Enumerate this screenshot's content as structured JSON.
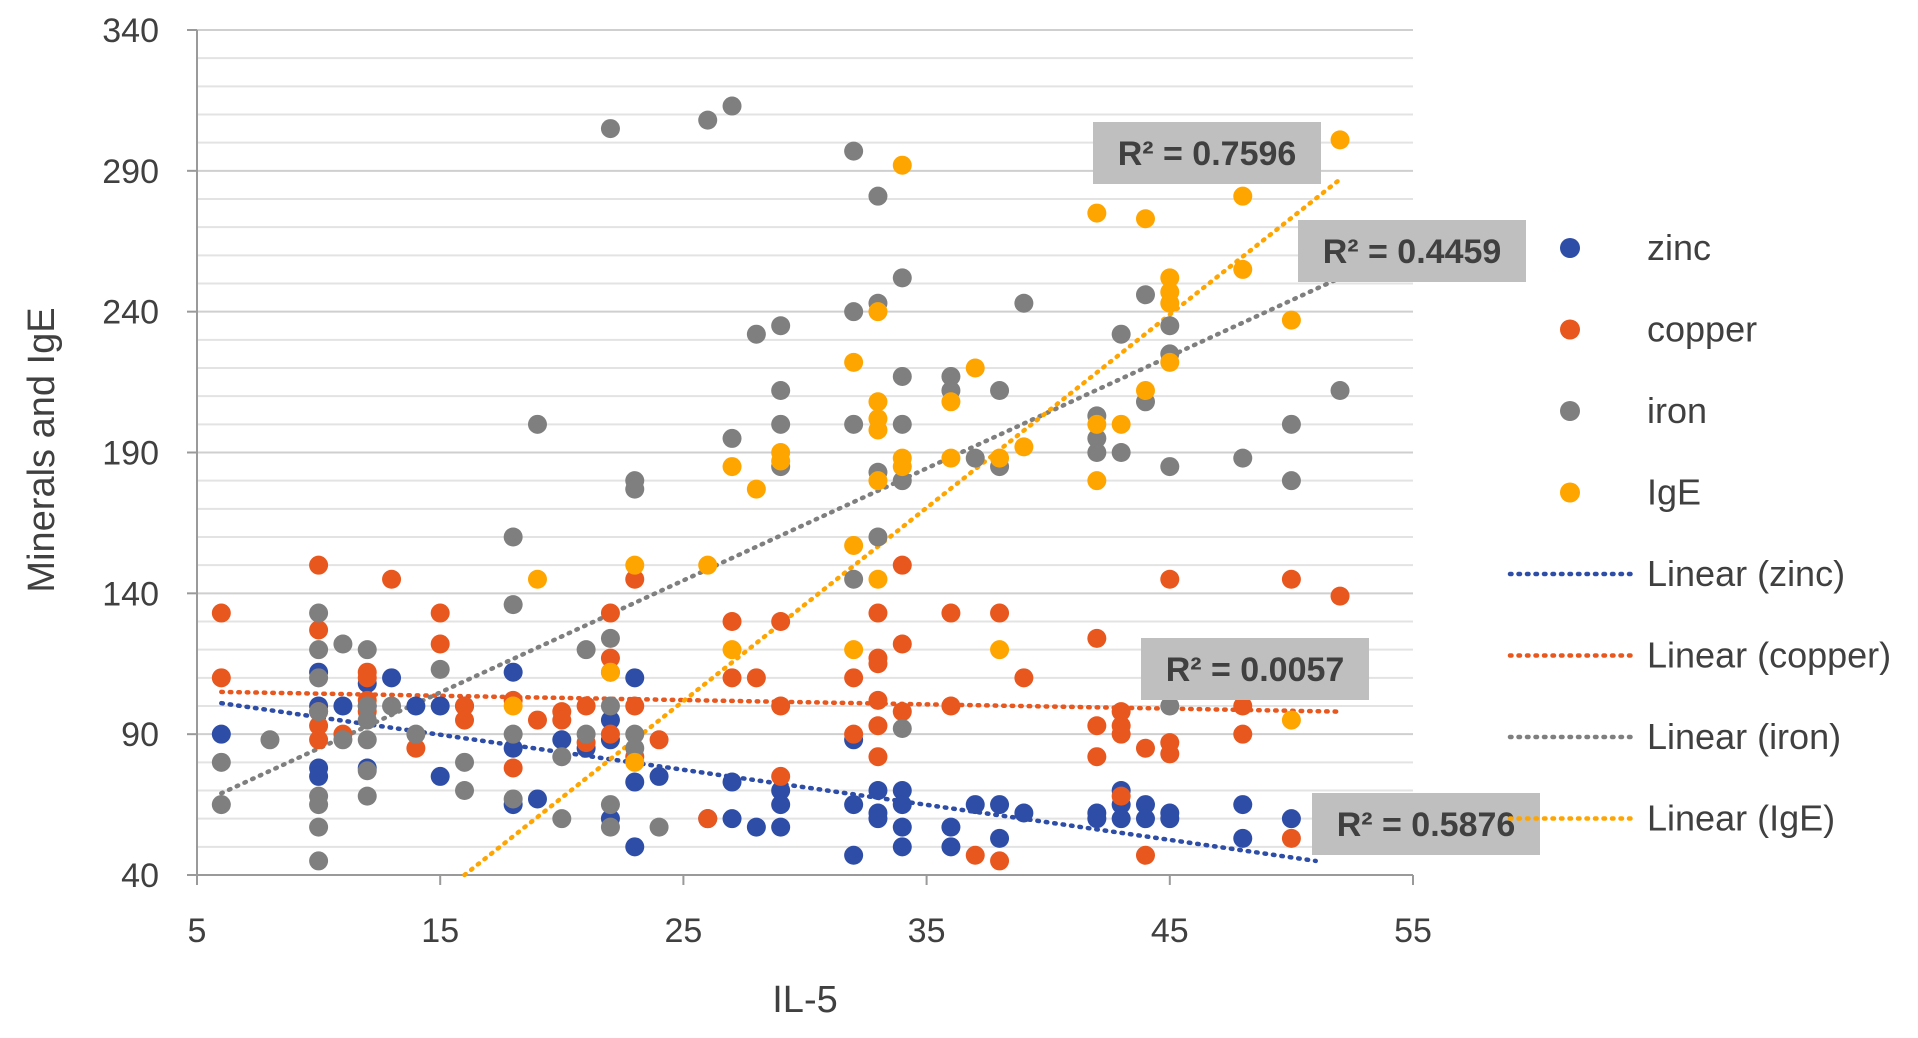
{
  "chart_data": {
    "type": "scatter",
    "title": "",
    "xlabel": "IL-5",
    "ylabel": "Minerals and IgE",
    "xlim": [
      5,
      55
    ],
    "ylim": [
      40,
      340
    ],
    "xticks": [
      5,
      15,
      25,
      35,
      45,
      55
    ],
    "yticks": [
      40,
      90,
      140,
      190,
      240,
      290,
      340
    ],
    "grid": true,
    "legend_position": "right",
    "series": [
      {
        "name": "zinc",
        "color": "#2E4DA7",
        "points": [
          [
            6,
            90
          ],
          [
            10,
            112
          ],
          [
            10,
            100
          ],
          [
            10,
            78
          ],
          [
            10,
            75
          ],
          [
            11,
            100
          ],
          [
            12,
            108
          ],
          [
            12,
            100
          ],
          [
            12,
            78
          ],
          [
            13,
            110
          ],
          [
            14,
            100
          ],
          [
            15,
            100
          ],
          [
            15,
            75
          ],
          [
            16,
            100
          ],
          [
            18,
            112
          ],
          [
            18,
            85
          ],
          [
            18,
            65
          ],
          [
            19,
            67
          ],
          [
            20,
            88
          ],
          [
            21,
            85
          ],
          [
            22,
            95
          ],
          [
            22,
            88
          ],
          [
            22,
            60
          ],
          [
            23,
            110
          ],
          [
            23,
            73
          ],
          [
            23,
            50
          ],
          [
            24,
            75
          ],
          [
            26,
            60
          ],
          [
            27,
            73
          ],
          [
            27,
            60
          ],
          [
            28,
            57
          ],
          [
            29,
            70
          ],
          [
            29,
            65
          ],
          [
            29,
            57
          ],
          [
            32,
            88
          ],
          [
            32,
            65
          ],
          [
            32,
            47
          ],
          [
            33,
            70
          ],
          [
            33,
            62
          ],
          [
            33,
            60
          ],
          [
            34,
            70
          ],
          [
            34,
            65
          ],
          [
            34,
            57
          ],
          [
            34,
            50
          ],
          [
            36,
            57
          ],
          [
            36,
            50
          ],
          [
            37,
            65
          ],
          [
            38,
            65
          ],
          [
            38,
            53
          ],
          [
            39,
            62
          ],
          [
            42,
            62
          ],
          [
            42,
            60
          ],
          [
            43,
            70
          ],
          [
            43,
            65
          ],
          [
            43,
            60
          ],
          [
            44,
            65
          ],
          [
            44,
            60
          ],
          [
            45,
            62
          ],
          [
            45,
            60
          ],
          [
            48,
            65
          ],
          [
            48,
            53
          ],
          [
            50,
            60
          ]
        ],
        "trendline": {
          "label": "Linear (zinc)",
          "x0": 6,
          "y0": 101,
          "x1": 51,
          "y1": 45,
          "r2": "R² = 0.5876"
        }
      },
      {
        "name": "copper",
        "color": "#E8571E",
        "points": [
          [
            6,
            133
          ],
          [
            6,
            110
          ],
          [
            10,
            150
          ],
          [
            10,
            127
          ],
          [
            10,
            98
          ],
          [
            10,
            93
          ],
          [
            10,
            88
          ],
          [
            11,
            90
          ],
          [
            12,
            112
          ],
          [
            12,
            110
          ],
          [
            12,
            102
          ],
          [
            12,
            98
          ],
          [
            13,
            145
          ],
          [
            14,
            85
          ],
          [
            15,
            133
          ],
          [
            15,
            122
          ],
          [
            16,
            100
          ],
          [
            16,
            95
          ],
          [
            18,
            102
          ],
          [
            18,
            78
          ],
          [
            19,
            95
          ],
          [
            20,
            98
          ],
          [
            20,
            95
          ],
          [
            21,
            100
          ],
          [
            21,
            87
          ],
          [
            22,
            133
          ],
          [
            22,
            117
          ],
          [
            22,
            112
          ],
          [
            22,
            90
          ],
          [
            23,
            145
          ],
          [
            23,
            100
          ],
          [
            23,
            82
          ],
          [
            24,
            88
          ],
          [
            26,
            60
          ],
          [
            27,
            130
          ],
          [
            27,
            110
          ],
          [
            28,
            110
          ],
          [
            29,
            130
          ],
          [
            29,
            100
          ],
          [
            29,
            75
          ],
          [
            32,
            110
          ],
          [
            32,
            90
          ],
          [
            33,
            133
          ],
          [
            33,
            117
          ],
          [
            33,
            115
          ],
          [
            33,
            102
          ],
          [
            33,
            93
          ],
          [
            33,
            82
          ],
          [
            34,
            150
          ],
          [
            34,
            122
          ],
          [
            34,
            98
          ],
          [
            36,
            133
          ],
          [
            36,
            100
          ],
          [
            37,
            47
          ],
          [
            38,
            133
          ],
          [
            38,
            45
          ],
          [
            39,
            110
          ],
          [
            42,
            124
          ],
          [
            42,
            93
          ],
          [
            42,
            82
          ],
          [
            43,
            98
          ],
          [
            43,
            93
          ],
          [
            43,
            90
          ],
          [
            43,
            68
          ],
          [
            44,
            85
          ],
          [
            44,
            47
          ],
          [
            45,
            145
          ],
          [
            45,
            87
          ],
          [
            45,
            83
          ],
          [
            48,
            100
          ],
          [
            48,
            90
          ],
          [
            50,
            145
          ],
          [
            50,
            53
          ],
          [
            52,
            139
          ]
        ],
        "trendline": {
          "label": "Linear (copper)",
          "x0": 6,
          "y0": 105,
          "x1": 52,
          "y1": 98,
          "r2": "R² = 0.0057"
        }
      },
      {
        "name": "iron",
        "color": "#7F7F7F",
        "points": [
          [
            6,
            80
          ],
          [
            6,
            65
          ],
          [
            8,
            88
          ],
          [
            10,
            133
          ],
          [
            10,
            120
          ],
          [
            10,
            110
          ],
          [
            10,
            98
          ],
          [
            10,
            68
          ],
          [
            10,
            65
          ],
          [
            10,
            57
          ],
          [
            10,
            45
          ],
          [
            11,
            122
          ],
          [
            11,
            88
          ],
          [
            12,
            120
          ],
          [
            12,
            100
          ],
          [
            12,
            95
          ],
          [
            12,
            88
          ],
          [
            12,
            77
          ],
          [
            12,
            68
          ],
          [
            13,
            100
          ],
          [
            14,
            90
          ],
          [
            15,
            113
          ],
          [
            16,
            80
          ],
          [
            16,
            70
          ],
          [
            18,
            160
          ],
          [
            18,
            136
          ],
          [
            18,
            90
          ],
          [
            18,
            67
          ],
          [
            19,
            200
          ],
          [
            20,
            82
          ],
          [
            20,
            60
          ],
          [
            21,
            120
          ],
          [
            21,
            90
          ],
          [
            22,
            305
          ],
          [
            22,
            124
          ],
          [
            22,
            100
          ],
          [
            22,
            65
          ],
          [
            22,
            57
          ],
          [
            23,
            180
          ],
          [
            23,
            177
          ],
          [
            23,
            90
          ],
          [
            23,
            85
          ],
          [
            24,
            57
          ],
          [
            26,
            308
          ],
          [
            27,
            313
          ],
          [
            27,
            195
          ],
          [
            28,
            232
          ],
          [
            29,
            235
          ],
          [
            29,
            212
          ],
          [
            29,
            200
          ],
          [
            29,
            185
          ],
          [
            32,
            297
          ],
          [
            32,
            240
          ],
          [
            32,
            200
          ],
          [
            32,
            145
          ],
          [
            33,
            281
          ],
          [
            33,
            243
          ],
          [
            33,
            183
          ],
          [
            33,
            160
          ],
          [
            34,
            252
          ],
          [
            34,
            217
          ],
          [
            34,
            200
          ],
          [
            34,
            180
          ],
          [
            34,
            92
          ],
          [
            36,
            217
          ],
          [
            36,
            212
          ],
          [
            37,
            188
          ],
          [
            38,
            212
          ],
          [
            38,
            185
          ],
          [
            39,
            243
          ],
          [
            42,
            203
          ],
          [
            42,
            195
          ],
          [
            42,
            190
          ],
          [
            43,
            232
          ],
          [
            43,
            190
          ],
          [
            44,
            246
          ],
          [
            44,
            208
          ],
          [
            45,
            235
          ],
          [
            45,
            225
          ],
          [
            45,
            185
          ],
          [
            45,
            100
          ],
          [
            48,
            188
          ],
          [
            50,
            200
          ],
          [
            50,
            180
          ],
          [
            52,
            212
          ]
        ],
        "trendline": {
          "label": "Linear (iron)",
          "x0": 6,
          "y0": 69,
          "x1": 52,
          "y1": 252,
          "r2": "R² = 0.4459"
        }
      },
      {
        "name": "IgE",
        "color": "#FFA500",
        "points": [
          [
            18,
            100
          ],
          [
            19,
            145
          ],
          [
            22,
            112
          ],
          [
            23,
            150
          ],
          [
            23,
            80
          ],
          [
            26,
            150
          ],
          [
            27,
            185
          ],
          [
            27,
            120
          ],
          [
            28,
            177
          ],
          [
            29,
            190
          ],
          [
            29,
            187
          ],
          [
            32,
            222
          ],
          [
            32,
            157
          ],
          [
            32,
            120
          ],
          [
            33,
            240
          ],
          [
            33,
            208
          ],
          [
            33,
            202
          ],
          [
            33,
            198
          ],
          [
            33,
            180
          ],
          [
            33,
            145
          ],
          [
            34,
            292
          ],
          [
            34,
            188
          ],
          [
            34,
            185
          ],
          [
            36,
            208
          ],
          [
            36,
            188
          ],
          [
            37,
            220
          ],
          [
            38,
            188
          ],
          [
            38,
            120
          ],
          [
            39,
            192
          ],
          [
            42,
            275
          ],
          [
            42,
            200
          ],
          [
            42,
            180
          ],
          [
            43,
            200
          ],
          [
            44,
            273
          ],
          [
            44,
            212
          ],
          [
            45,
            252
          ],
          [
            45,
            247
          ],
          [
            45,
            243
          ],
          [
            45,
            222
          ],
          [
            48,
            281
          ],
          [
            48,
            255
          ],
          [
            50,
            237
          ],
          [
            50,
            95
          ],
          [
            52,
            301
          ]
        ],
        "trendline": {
          "label": "Linear (IgE)",
          "x0": 16,
          "y0": 40,
          "x1": 52,
          "y1": 287,
          "r2": "R² = 0.7596"
        }
      }
    ]
  }
}
